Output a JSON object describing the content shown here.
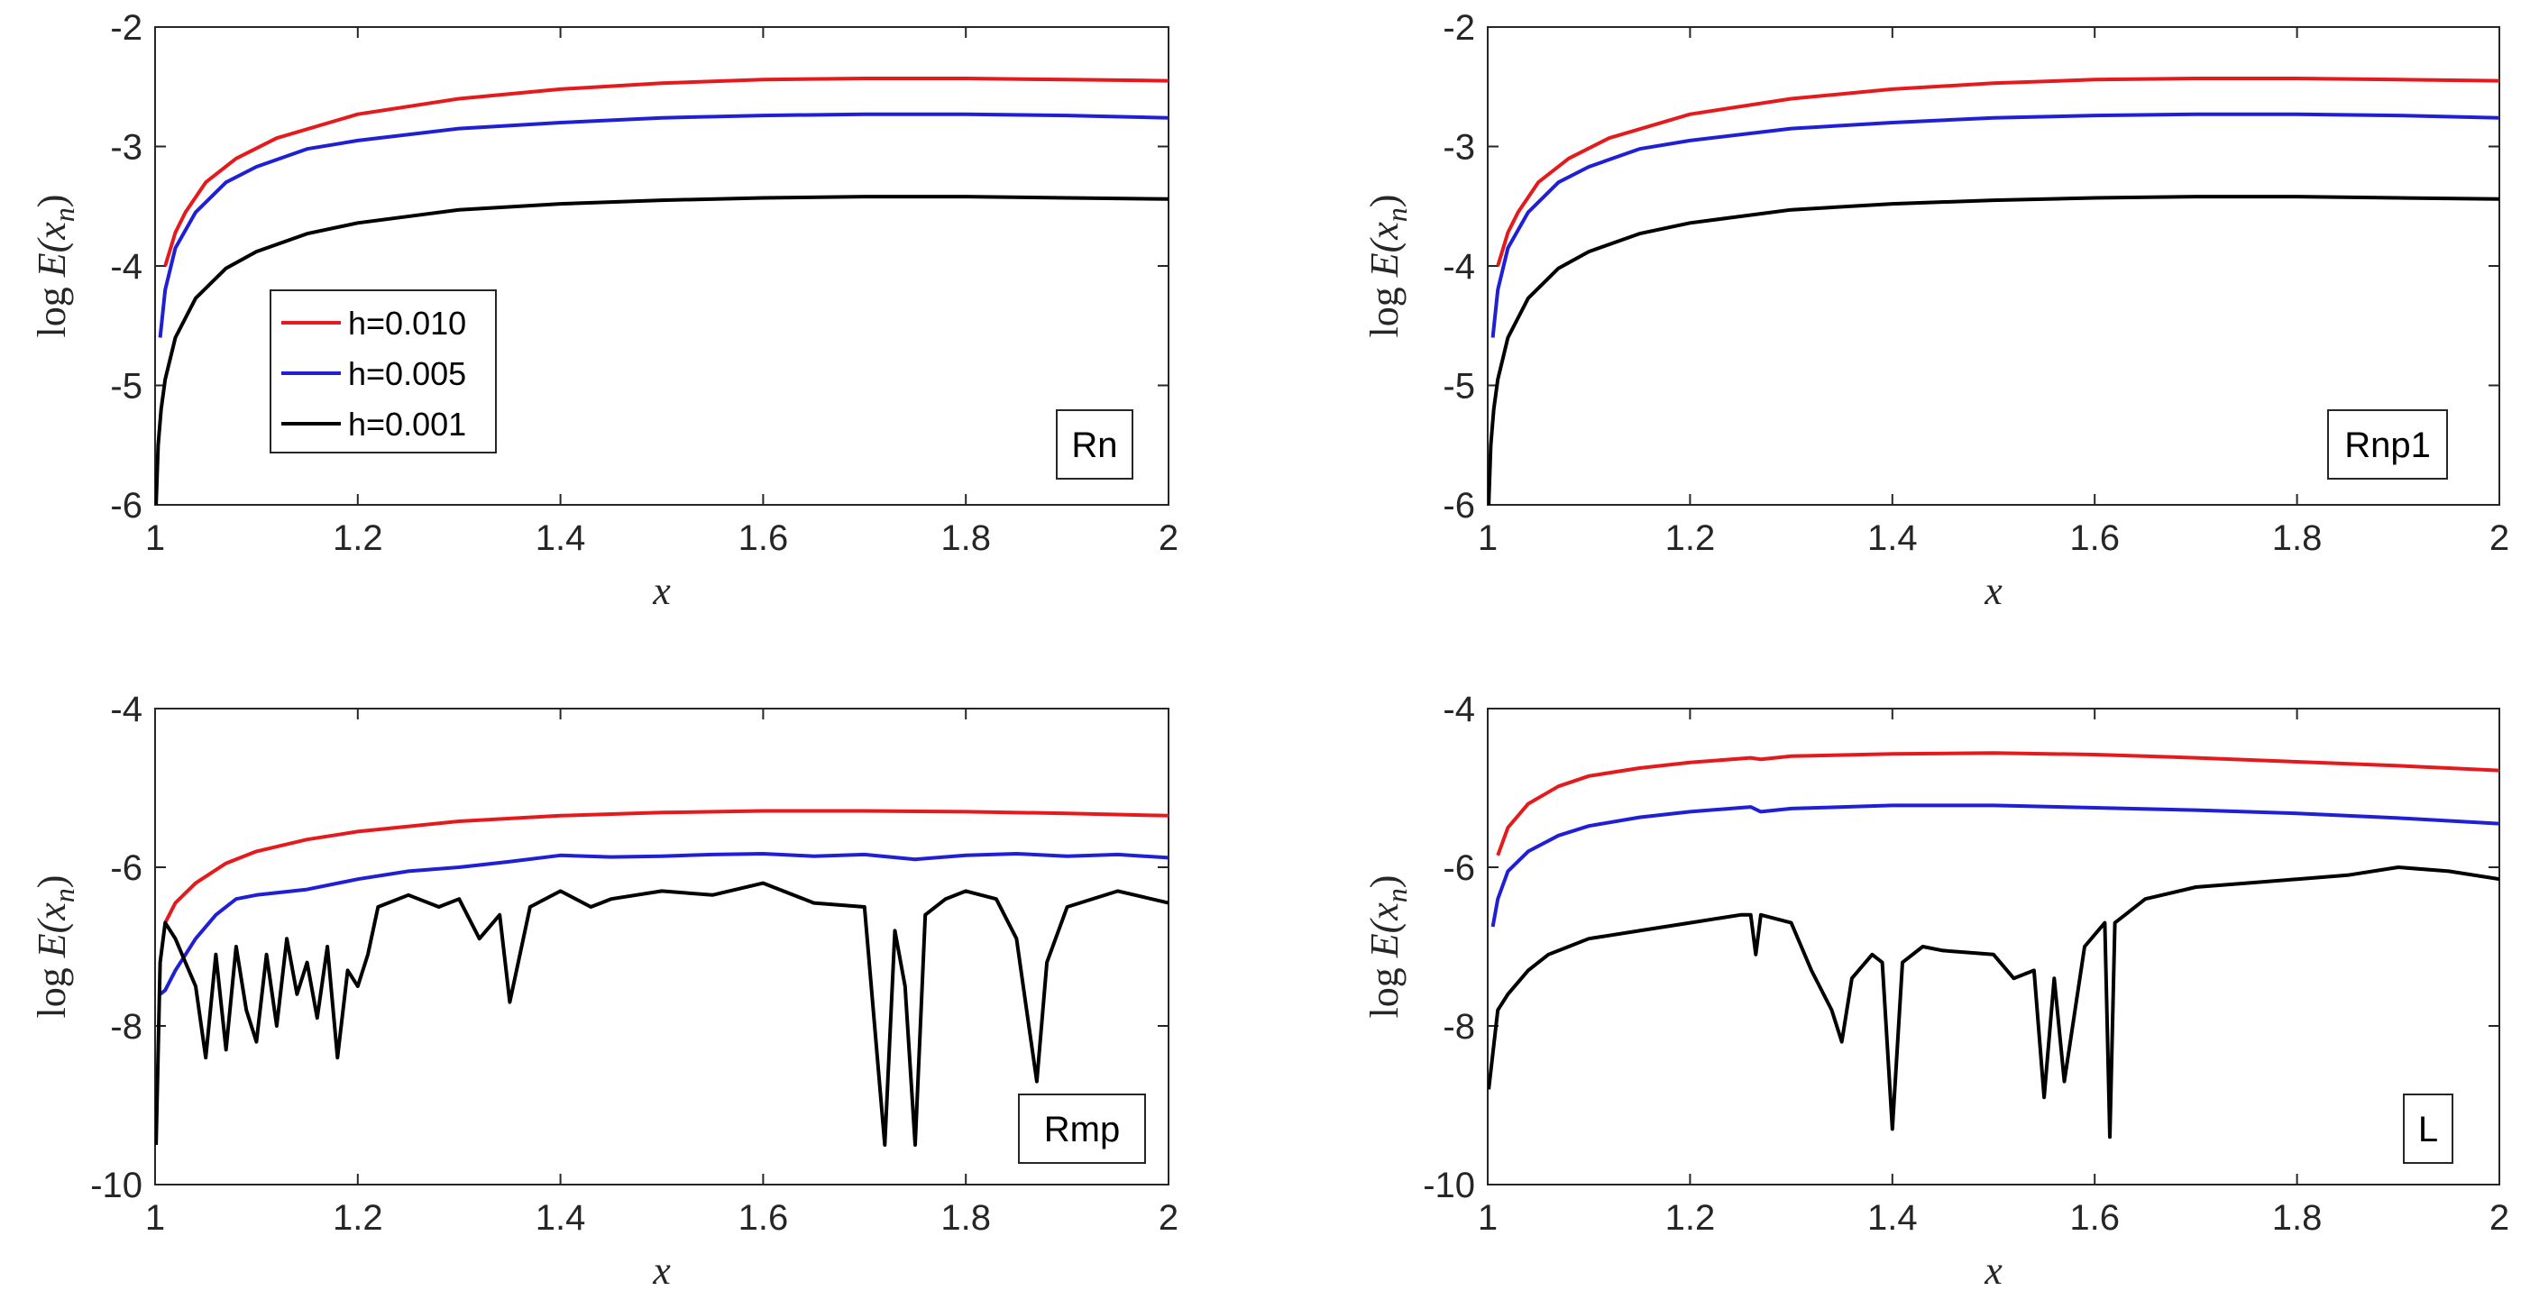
{
  "figure": {
    "colors": {
      "h0010": "#e41a1c",
      "h0005": "#1f1fd6",
      "h0001": "#000000"
    },
    "legend": [
      "h=0.010",
      "h=0.005",
      "h=0.001"
    ],
    "ylabel_log": "log",
    "ylabel_E": "E(x",
    "ylabel_n": "n",
    "ylabel_close": ")"
  },
  "chart_data": [
    {
      "type": "line",
      "tag": "Rn",
      "xlabel": "x",
      "xlim": [
        1,
        2
      ],
      "ylim": [
        -6,
        -2
      ],
      "xticks": [
        1,
        1.2,
        1.4,
        1.6,
        1.8,
        2
      ],
      "xtick_labels": [
        "1",
        "1.2",
        "1.4",
        "1.6",
        "1.8",
        "2"
      ],
      "yticks": [
        -6,
        -5,
        -4,
        -3,
        -2
      ],
      "ytick_labels": [
        "-6",
        "-5",
        "-4",
        "-3",
        "-2"
      ],
      "series": [
        {
          "name": "h=0.010",
          "x": [
            1.01,
            1.02,
            1.03,
            1.05,
            1.08,
            1.12,
            1.2,
            1.3,
            1.4,
            1.5,
            1.6,
            1.7,
            1.8,
            1.9,
            2.0
          ],
          "values": [
            -4.0,
            -3.72,
            -3.55,
            -3.3,
            -3.1,
            -2.93,
            -2.73,
            -2.6,
            -2.52,
            -2.47,
            -2.44,
            -2.43,
            -2.43,
            -2.44,
            -2.45
          ]
        },
        {
          "name": "h=0.005",
          "x": [
            1.005,
            1.01,
            1.02,
            1.04,
            1.07,
            1.1,
            1.15,
            1.2,
            1.3,
            1.4,
            1.5,
            1.6,
            1.7,
            1.8,
            1.9,
            2.0
          ],
          "values": [
            -4.6,
            -4.2,
            -3.85,
            -3.55,
            -3.3,
            -3.17,
            -3.02,
            -2.95,
            -2.85,
            -2.8,
            -2.76,
            -2.74,
            -2.73,
            -2.73,
            -2.74,
            -2.76
          ]
        },
        {
          "name": "h=0.001",
          "x": [
            1.001,
            1.003,
            1.006,
            1.01,
            1.02,
            1.04,
            1.07,
            1.1,
            1.15,
            1.2,
            1.3,
            1.4,
            1.5,
            1.6,
            1.7,
            1.8,
            1.9,
            2.0
          ],
          "values": [
            -6.0,
            -5.5,
            -5.2,
            -4.95,
            -4.6,
            -4.27,
            -4.02,
            -3.88,
            -3.73,
            -3.64,
            -3.53,
            -3.48,
            -3.45,
            -3.43,
            -3.42,
            -3.42,
            -3.43,
            -3.44
          ]
        }
      ]
    },
    {
      "type": "line",
      "tag": "Rnp1",
      "xlabel": "x",
      "xlim": [
        1,
        2
      ],
      "ylim": [
        -6,
        -2
      ],
      "xticks": [
        1,
        1.2,
        1.4,
        1.6,
        1.8,
        2
      ],
      "xtick_labels": [
        "1",
        "1.2",
        "1.4",
        "1.6",
        "1.8",
        "2"
      ],
      "yticks": [
        -6,
        -5,
        -4,
        -3,
        -2
      ],
      "ytick_labels": [
        "-6",
        "-5",
        "-4",
        "-3",
        "-2"
      ],
      "series": [
        {
          "name": "h=0.010",
          "x": [
            1.01,
            1.02,
            1.03,
            1.05,
            1.08,
            1.12,
            1.2,
            1.3,
            1.4,
            1.5,
            1.6,
            1.7,
            1.8,
            1.9,
            2.0
          ],
          "values": [
            -4.0,
            -3.72,
            -3.55,
            -3.3,
            -3.1,
            -2.93,
            -2.73,
            -2.6,
            -2.52,
            -2.47,
            -2.44,
            -2.43,
            -2.43,
            -2.44,
            -2.45
          ]
        },
        {
          "name": "h=0.005",
          "x": [
            1.005,
            1.01,
            1.02,
            1.04,
            1.07,
            1.1,
            1.15,
            1.2,
            1.3,
            1.4,
            1.5,
            1.6,
            1.7,
            1.8,
            1.9,
            2.0
          ],
          "values": [
            -4.6,
            -4.2,
            -3.85,
            -3.55,
            -3.3,
            -3.17,
            -3.02,
            -2.95,
            -2.85,
            -2.8,
            -2.76,
            -2.74,
            -2.73,
            -2.73,
            -2.74,
            -2.76
          ]
        },
        {
          "name": "h=0.001",
          "x": [
            1.001,
            1.003,
            1.006,
            1.01,
            1.02,
            1.04,
            1.07,
            1.1,
            1.15,
            1.2,
            1.3,
            1.4,
            1.5,
            1.6,
            1.7,
            1.8,
            1.9,
            2.0
          ],
          "values": [
            -6.0,
            -5.5,
            -5.2,
            -4.95,
            -4.6,
            -4.27,
            -4.02,
            -3.88,
            -3.73,
            -3.64,
            -3.53,
            -3.48,
            -3.45,
            -3.43,
            -3.42,
            -3.42,
            -3.43,
            -3.44
          ]
        }
      ]
    },
    {
      "type": "line",
      "tag": "Rmp",
      "xlabel": "x",
      "xlim": [
        1,
        2
      ],
      "ylim": [
        -10,
        -4
      ],
      "xticks": [
        1,
        1.2,
        1.4,
        1.6,
        1.8,
        2
      ],
      "xtick_labels": [
        "1",
        "1.2",
        "1.4",
        "1.6",
        "1.8",
        "2"
      ],
      "yticks": [
        -10,
        -8,
        -6,
        -4
      ],
      "ytick_labels": [
        "-10",
        "-8",
        "-6",
        "-4"
      ],
      "series": [
        {
          "name": "h=0.010",
          "x": [
            1.01,
            1.02,
            1.04,
            1.07,
            1.1,
            1.15,
            1.2,
            1.3,
            1.4,
            1.5,
            1.6,
            1.7,
            1.8,
            1.9,
            2.0
          ],
          "values": [
            -6.7,
            -6.45,
            -6.2,
            -5.95,
            -5.8,
            -5.65,
            -5.55,
            -5.42,
            -5.35,
            -5.31,
            -5.29,
            -5.29,
            -5.3,
            -5.32,
            -5.35
          ]
        },
        {
          "name": "h=0.005",
          "x": [
            1.005,
            1.01,
            1.02,
            1.04,
            1.06,
            1.08,
            1.1,
            1.15,
            1.2,
            1.25,
            1.3,
            1.35,
            1.4,
            1.45,
            1.5,
            1.55,
            1.6,
            1.65,
            1.7,
            1.75,
            1.8,
            1.85,
            1.9,
            1.95,
            2.0
          ],
          "values": [
            -7.6,
            -7.55,
            -7.3,
            -6.9,
            -6.6,
            -6.4,
            -6.35,
            -6.28,
            -6.15,
            -6.05,
            -6.0,
            -5.93,
            -5.85,
            -5.87,
            -5.86,
            -5.84,
            -5.83,
            -5.86,
            -5.84,
            -5.9,
            -5.85,
            -5.83,
            -5.86,
            -5.84,
            -5.88
          ]
        },
        {
          "name": "h=0.001",
          "x": [
            1.001,
            1.005,
            1.01,
            1.02,
            1.03,
            1.04,
            1.05,
            1.06,
            1.07,
            1.08,
            1.09,
            1.1,
            1.11,
            1.12,
            1.13,
            1.14,
            1.15,
            1.16,
            1.17,
            1.18,
            1.19,
            1.2,
            1.21,
            1.22,
            1.25,
            1.28,
            1.3,
            1.32,
            1.34,
            1.35,
            1.37,
            1.4,
            1.43,
            1.45,
            1.5,
            1.55,
            1.6,
            1.65,
            1.7,
            1.72,
            1.73,
            1.74,
            1.75,
            1.76,
            1.78,
            1.8,
            1.83,
            1.85,
            1.86,
            1.87,
            1.88,
            1.9,
            1.95,
            2.0
          ],
          "values": [
            -9.5,
            -7.2,
            -6.7,
            -6.9,
            -7.2,
            -7.5,
            -8.4,
            -7.1,
            -8.3,
            -7.0,
            -7.8,
            -8.2,
            -7.1,
            -8.0,
            -6.9,
            -7.6,
            -7.2,
            -7.9,
            -7.0,
            -8.4,
            -7.3,
            -7.5,
            -7.1,
            -6.5,
            -6.35,
            -6.5,
            -6.4,
            -6.9,
            -6.6,
            -7.7,
            -6.5,
            -6.3,
            -6.5,
            -6.4,
            -6.3,
            -6.35,
            -6.2,
            -6.45,
            -6.5,
            -9.5,
            -6.8,
            -7.5,
            -9.5,
            -6.6,
            -6.4,
            -6.3,
            -6.4,
            -6.9,
            -7.8,
            -8.7,
            -7.2,
            -6.5,
            -6.3,
            -6.45
          ]
        }
      ]
    },
    {
      "type": "line",
      "tag": "L",
      "xlabel": "x",
      "xlim": [
        1,
        2
      ],
      "ylim": [
        -10,
        -4
      ],
      "xticks": [
        1,
        1.2,
        1.4,
        1.6,
        1.8,
        2
      ],
      "xtick_labels": [
        "1",
        "1.2",
        "1.4",
        "1.6",
        "1.8",
        "2"
      ],
      "yticks": [
        -10,
        -8,
        -6,
        -4
      ],
      "ytick_labels": [
        "-10",
        "-8",
        "-6",
        "-4"
      ],
      "series": [
        {
          "name": "h=0.010",
          "x": [
            1.01,
            1.02,
            1.04,
            1.07,
            1.1,
            1.15,
            1.2,
            1.26,
            1.27,
            1.3,
            1.4,
            1.5,
            1.6,
            1.7,
            1.8,
            1.9,
            2.0
          ],
          "values": [
            -5.85,
            -5.5,
            -5.2,
            -4.98,
            -4.85,
            -4.75,
            -4.68,
            -4.62,
            -4.64,
            -4.6,
            -4.57,
            -4.56,
            -4.58,
            -4.62,
            -4.67,
            -4.72,
            -4.78
          ]
        },
        {
          "name": "h=0.005",
          "x": [
            1.005,
            1.01,
            1.02,
            1.04,
            1.07,
            1.1,
            1.15,
            1.2,
            1.26,
            1.27,
            1.3,
            1.4,
            1.5,
            1.6,
            1.7,
            1.8,
            1.9,
            2.0
          ],
          "values": [
            -6.75,
            -6.4,
            -6.05,
            -5.8,
            -5.6,
            -5.48,
            -5.37,
            -5.3,
            -5.24,
            -5.3,
            -5.26,
            -5.22,
            -5.22,
            -5.25,
            -5.28,
            -5.32,
            -5.38,
            -5.45
          ]
        },
        {
          "name": "h=0.001",
          "x": [
            1.001,
            1.01,
            1.02,
            1.04,
            1.06,
            1.08,
            1.1,
            1.15,
            1.2,
            1.25,
            1.26,
            1.265,
            1.27,
            1.3,
            1.32,
            1.34,
            1.35,
            1.36,
            1.38,
            1.39,
            1.4,
            1.41,
            1.43,
            1.45,
            1.5,
            1.52,
            1.54,
            1.55,
            1.56,
            1.57,
            1.59,
            1.61,
            1.615,
            1.62,
            1.63,
            1.65,
            1.7,
            1.75,
            1.8,
            1.85,
            1.9,
            1.95,
            2.0
          ],
          "values": [
            -8.8,
            -7.8,
            -7.6,
            -7.3,
            -7.1,
            -7.0,
            -6.9,
            -6.8,
            -6.7,
            -6.6,
            -6.6,
            -7.1,
            -6.6,
            -6.7,
            -7.3,
            -7.8,
            -8.2,
            -7.4,
            -7.1,
            -7.2,
            -9.3,
            -7.2,
            -7.0,
            -7.05,
            -7.1,
            -7.4,
            -7.3,
            -8.9,
            -7.4,
            -8.7,
            -7.0,
            -6.7,
            -9.4,
            -6.7,
            -6.6,
            -6.4,
            -6.25,
            -6.2,
            -6.15,
            -6.1,
            -6.0,
            -6.05,
            -6.15
          ]
        }
      ]
    }
  ]
}
